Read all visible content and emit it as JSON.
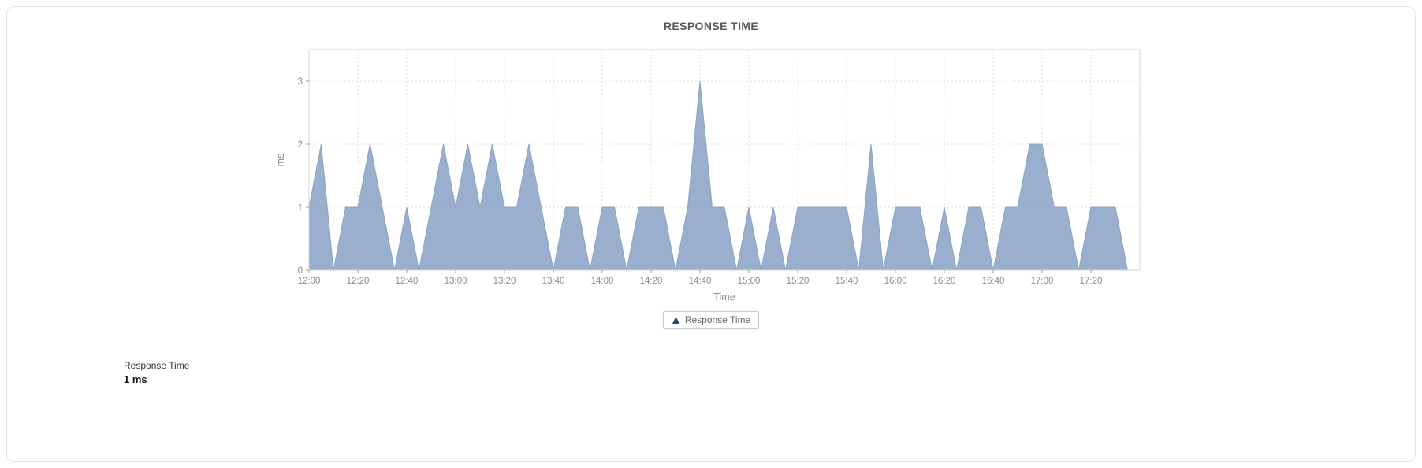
{
  "chart_data": {
    "type": "area",
    "title": "RESPONSE TIME",
    "xlabel": "Time",
    "ylabel": "ms",
    "area_color": "#8BA4C6",
    "grid": true,
    "legend_position": "bottom",
    "ylim": [
      0,
      3.5
    ],
    "yticks": [
      0,
      1,
      2,
      3
    ],
    "xticks": [
      "12:00",
      "12:20",
      "12:40",
      "13:00",
      "13:20",
      "13:40",
      "14:00",
      "14:20",
      "14:40",
      "15:00",
      "15:20",
      "15:40",
      "16:00",
      "16:20",
      "16:40",
      "17:00",
      "17:20"
    ],
    "x": [
      "12:00",
      "12:05",
      "12:10",
      "12:15",
      "12:20",
      "12:25",
      "12:30",
      "12:35",
      "12:40",
      "12:45",
      "12:50",
      "12:55",
      "13:00",
      "13:05",
      "13:10",
      "13:15",
      "13:20",
      "13:25",
      "13:30",
      "13:35",
      "13:40",
      "13:45",
      "13:50",
      "13:55",
      "14:00",
      "14:05",
      "14:10",
      "14:15",
      "14:20",
      "14:25",
      "14:30",
      "14:35",
      "14:40",
      "14:45",
      "14:50",
      "14:55",
      "15:00",
      "15:05",
      "15:10",
      "15:15",
      "15:20",
      "15:25",
      "15:30",
      "15:35",
      "15:40",
      "15:45",
      "15:50",
      "15:55",
      "16:00",
      "16:05",
      "16:10",
      "16:15",
      "16:20",
      "16:25",
      "16:30",
      "16:35",
      "16:40",
      "16:45",
      "16:50",
      "16:55",
      "17:00",
      "17:05",
      "17:10",
      "17:15",
      "17:20",
      "17:25",
      "17:30",
      "17:35"
    ],
    "values": [
      1,
      2,
      0,
      1,
      1,
      2,
      1,
      0,
      1,
      0,
      1,
      2,
      1,
      2,
      1,
      2,
      1,
      1,
      2,
      1,
      0,
      1,
      1,
      0,
      1,
      1,
      0,
      1,
      1,
      1,
      0,
      1,
      3,
      1,
      1,
      0,
      1,
      0,
      1,
      0,
      1,
      1,
      1,
      1,
      1,
      0,
      2,
      0,
      1,
      1,
      1,
      0,
      1,
      0,
      1,
      1,
      0,
      1,
      1,
      2,
      2,
      1,
      1,
      0,
      1,
      1,
      1,
      0
    ],
    "series_name": "Response Time"
  },
  "legend": {
    "label": "Response Time",
    "marker_color": "#27456E"
  },
  "summary": {
    "label": "Response Time",
    "value": "1 ms"
  }
}
